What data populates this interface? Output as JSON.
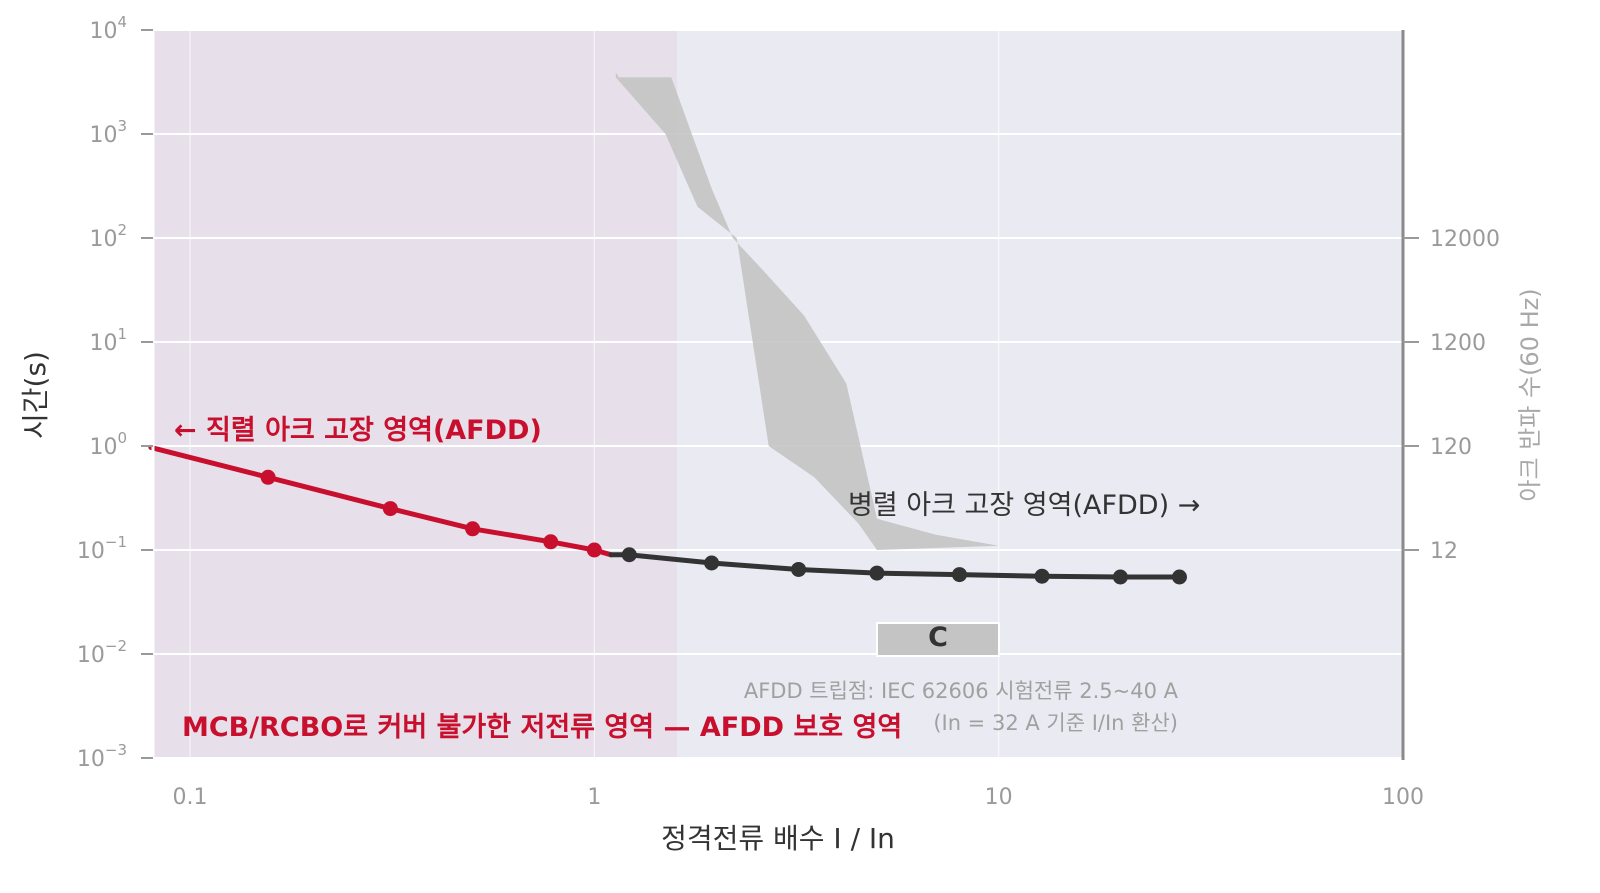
{
  "chart_data": {
    "type": "line",
    "x_scale": "log",
    "y_scale": "log",
    "xlim": [
      0.08,
      100
    ],
    "ylim": [
      0.001,
      10000
    ],
    "xlabel": "정격전류 배수  I / In",
    "ylabel": "시간(s)",
    "y2label": "아크 반파 수(60 Hz)",
    "x_ticks": [
      {
        "value": 0.1,
        "label": "0.1"
      },
      {
        "value": 1,
        "label": "1"
      },
      {
        "value": 10,
        "label": "10"
      },
      {
        "value": 100,
        "label": "100"
      }
    ],
    "y_ticks": [
      {
        "value": 0.001,
        "base": "10",
        "exp": "−3"
      },
      {
        "value": 0.01,
        "base": "10",
        "exp": "−2"
      },
      {
        "value": 0.1,
        "base": "10",
        "exp": "−1"
      },
      {
        "value": 1,
        "base": "10",
        "exp": "0"
      },
      {
        "value": 10,
        "base": "10",
        "exp": "1"
      },
      {
        "value": 100,
        "base": "10",
        "exp": "2"
      },
      {
        "value": 1000,
        "base": "10",
        "exp": "3"
      },
      {
        "value": 10000,
        "base": "10",
        "exp": "4"
      }
    ],
    "y2_ticks": [
      {
        "value": 100,
        "label": "12000"
      },
      {
        "value": 10,
        "label": "1200"
      },
      {
        "value": 1,
        "label": "120"
      },
      {
        "value": 0.1,
        "label": "12"
      }
    ],
    "grid": true,
    "regions": [
      {
        "x_from": 0.08,
        "x_to": 1.6,
        "color": "#e6dde8"
      }
    ],
    "series": [
      {
        "color": "#c8102e",
        "x": [
          0.08,
          0.156,
          0.313,
          0.5,
          0.78,
          1.0,
          1.1
        ],
        "y": [
          0.97,
          0.5,
          0.25,
          0.16,
          0.12,
          0.1,
          0.09
        ]
      },
      {
        "color": "#333333",
        "x": [
          1.22,
          1.95,
          3.2,
          5.0,
          8.0,
          12.8,
          20.0,
          28.0
        ],
        "y": [
          0.09,
          0.075,
          0.065,
          0.06,
          0.058,
          0.056,
          0.055,
          0.055
        ],
        "line_x_from": 1.1
      }
    ],
    "band": {
      "color": "#c4c4c4",
      "upper_x": [
        1.13,
        1.15,
        1.55,
        1.95,
        2.2,
        2.6,
        3.3,
        4.2,
        5.0,
        7.0,
        10.0
      ],
      "upper_y": [
        3900,
        3500,
        3500,
        300,
        100,
        50,
        18,
        4,
        0.2,
        0.14,
        0.11
      ],
      "lower_x": [
        10.0,
        5.0,
        4.5,
        3.5,
        2.7,
        2.25,
        1.8,
        1.5,
        1.13
      ],
      "lower_y": [
        0.11,
        0.1,
        0.18,
        0.5,
        1.0,
        100,
        200,
        1000,
        3500
      ]
    },
    "annotations": {
      "series_arc": "← 직렬 아크 고장 영역(AFDD)",
      "parallel_arc": "병렬 아크 고장 영역(AFDD) →",
      "curve_c": "C",
      "note_line1": "AFDD 트립점: IEC 62606 시험전류 2.5~40 A",
      "note_line2": "(In = 32 A 기준 I/In 환산)",
      "mcb_note": "MCB/RCBO로 커버 불가한 저전류 영역 — AFDD 보호 영역"
    },
    "colors": {
      "plot_bg": "#eaeaf2",
      "red": "#c8102e",
      "dark": "#333333",
      "band": "#c4c4c4",
      "c_box": "#c4c4c4"
    }
  }
}
